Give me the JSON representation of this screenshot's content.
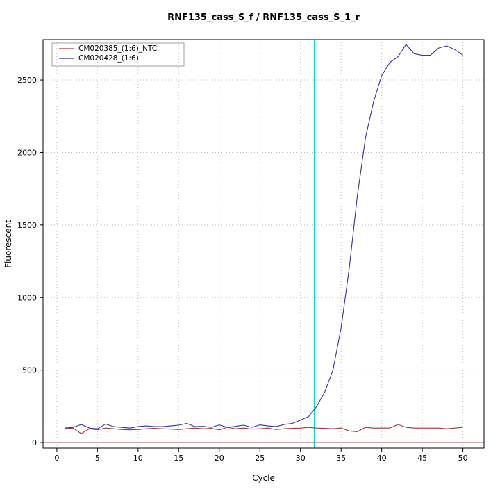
{
  "chart_data": {
    "type": "line",
    "title": "RNF135_cass_S_f / RNF135_cass_S_1_r",
    "xlabel": "Cycle",
    "ylabel": "Fluorescent",
    "xlim": [
      -1.7,
      52.6
    ],
    "ylim": [
      -38,
      2778
    ],
    "xticks": [
      0,
      5,
      10,
      15,
      20,
      25,
      30,
      35,
      40,
      45,
      50
    ],
    "yticks": [
      0,
      500,
      1000,
      1500,
      2000,
      2500
    ],
    "grid": true,
    "grid_color": "#bfbfbf",
    "frame_color": "#000000",
    "threshold_line": {
      "y": 0,
      "color": "#8b1a1a"
    },
    "ct_line": {
      "x": 31.7,
      "color": "#00dcdc"
    },
    "legend_position": "top-left",
    "x": [
      1,
      2,
      3,
      4,
      5,
      6,
      7,
      8,
      9,
      10,
      11,
      12,
      13,
      14,
      15,
      16,
      17,
      18,
      19,
      20,
      21,
      22,
      23,
      24,
      25,
      26,
      27,
      28,
      29,
      30,
      31,
      32,
      33,
      34,
      35,
      36,
      37,
      38,
      39,
      40,
      41,
      42,
      43,
      44,
      45,
      46,
      47,
      48,
      49,
      50
    ],
    "series": [
      {
        "name": "CM020385_(1:6)_NTC",
        "color": "#9c3a3a",
        "values": [
          95,
          100,
          62,
          95,
          88,
          100,
          95,
          90,
          88,
          90,
          95,
          98,
          95,
          93,
          90,
          95,
          100,
          95,
          98,
          88,
          105,
          95,
          100,
          93,
          95,
          100,
          90,
          95,
          98,
          100,
          105,
          100,
          98,
          95,
          100,
          80,
          75,
          105,
          100,
          100,
          100,
          125,
          105,
          100,
          100,
          100,
          100,
          95,
          100,
          105
        ]
      },
      {
        "name": "CM020428_(1:6)",
        "color": "#32329c",
        "values": [
          100,
          105,
          125,
          100,
          95,
          128,
          110,
          105,
          100,
          110,
          115,
          110,
          110,
          115,
          120,
          132,
          110,
          112,
          105,
          122,
          105,
          112,
          120,
          105,
          122,
          115,
          110,
          125,
          132,
          155,
          180,
          250,
          350,
          500,
          790,
          1200,
          1700,
          2100,
          2350,
          2530,
          2620,
          2660,
          2745,
          2680,
          2670,
          2670,
          2720,
          2735,
          2710,
          2670
        ]
      }
    ]
  }
}
